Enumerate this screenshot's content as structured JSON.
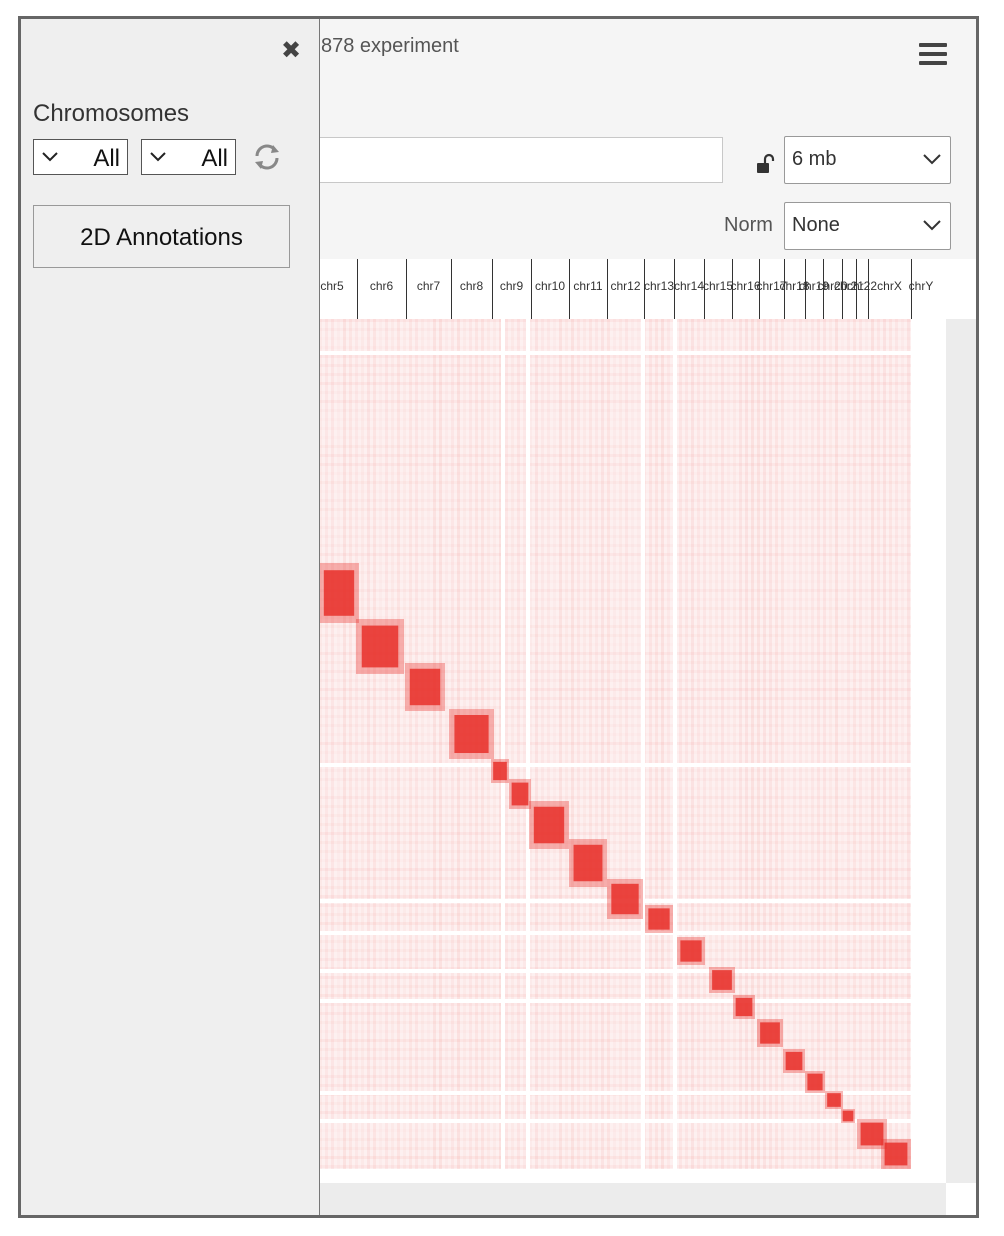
{
  "header": {
    "title": "878 experiment"
  },
  "resolution": {
    "value": "6 mb"
  },
  "normalization": {
    "label": "Norm",
    "value": "None"
  },
  "panel": {
    "heading": "Chromosomes",
    "chr_select_1": "All",
    "chr_select_2": "All",
    "annotations_button": "2D Annotations"
  },
  "colors": {
    "map": "#e8302a",
    "panel_bg": "#efefef"
  },
  "ruler": {
    "labels": [
      "chr5",
      "chr6",
      "chr7",
      "chr8",
      "chr9",
      "chr10",
      "chr11",
      "chr12",
      "chr13",
      "chr14",
      "chr15",
      "chr16",
      "chr17",
      "chr18",
      "chr19",
      "chr20",
      "chr21",
      "chr22",
      "chrX",
      "chrY"
    ]
  },
  "icons": [
    "close-icon",
    "menu-icon",
    "lock-icon",
    "chevron-down-icon",
    "refresh-icon"
  ]
}
